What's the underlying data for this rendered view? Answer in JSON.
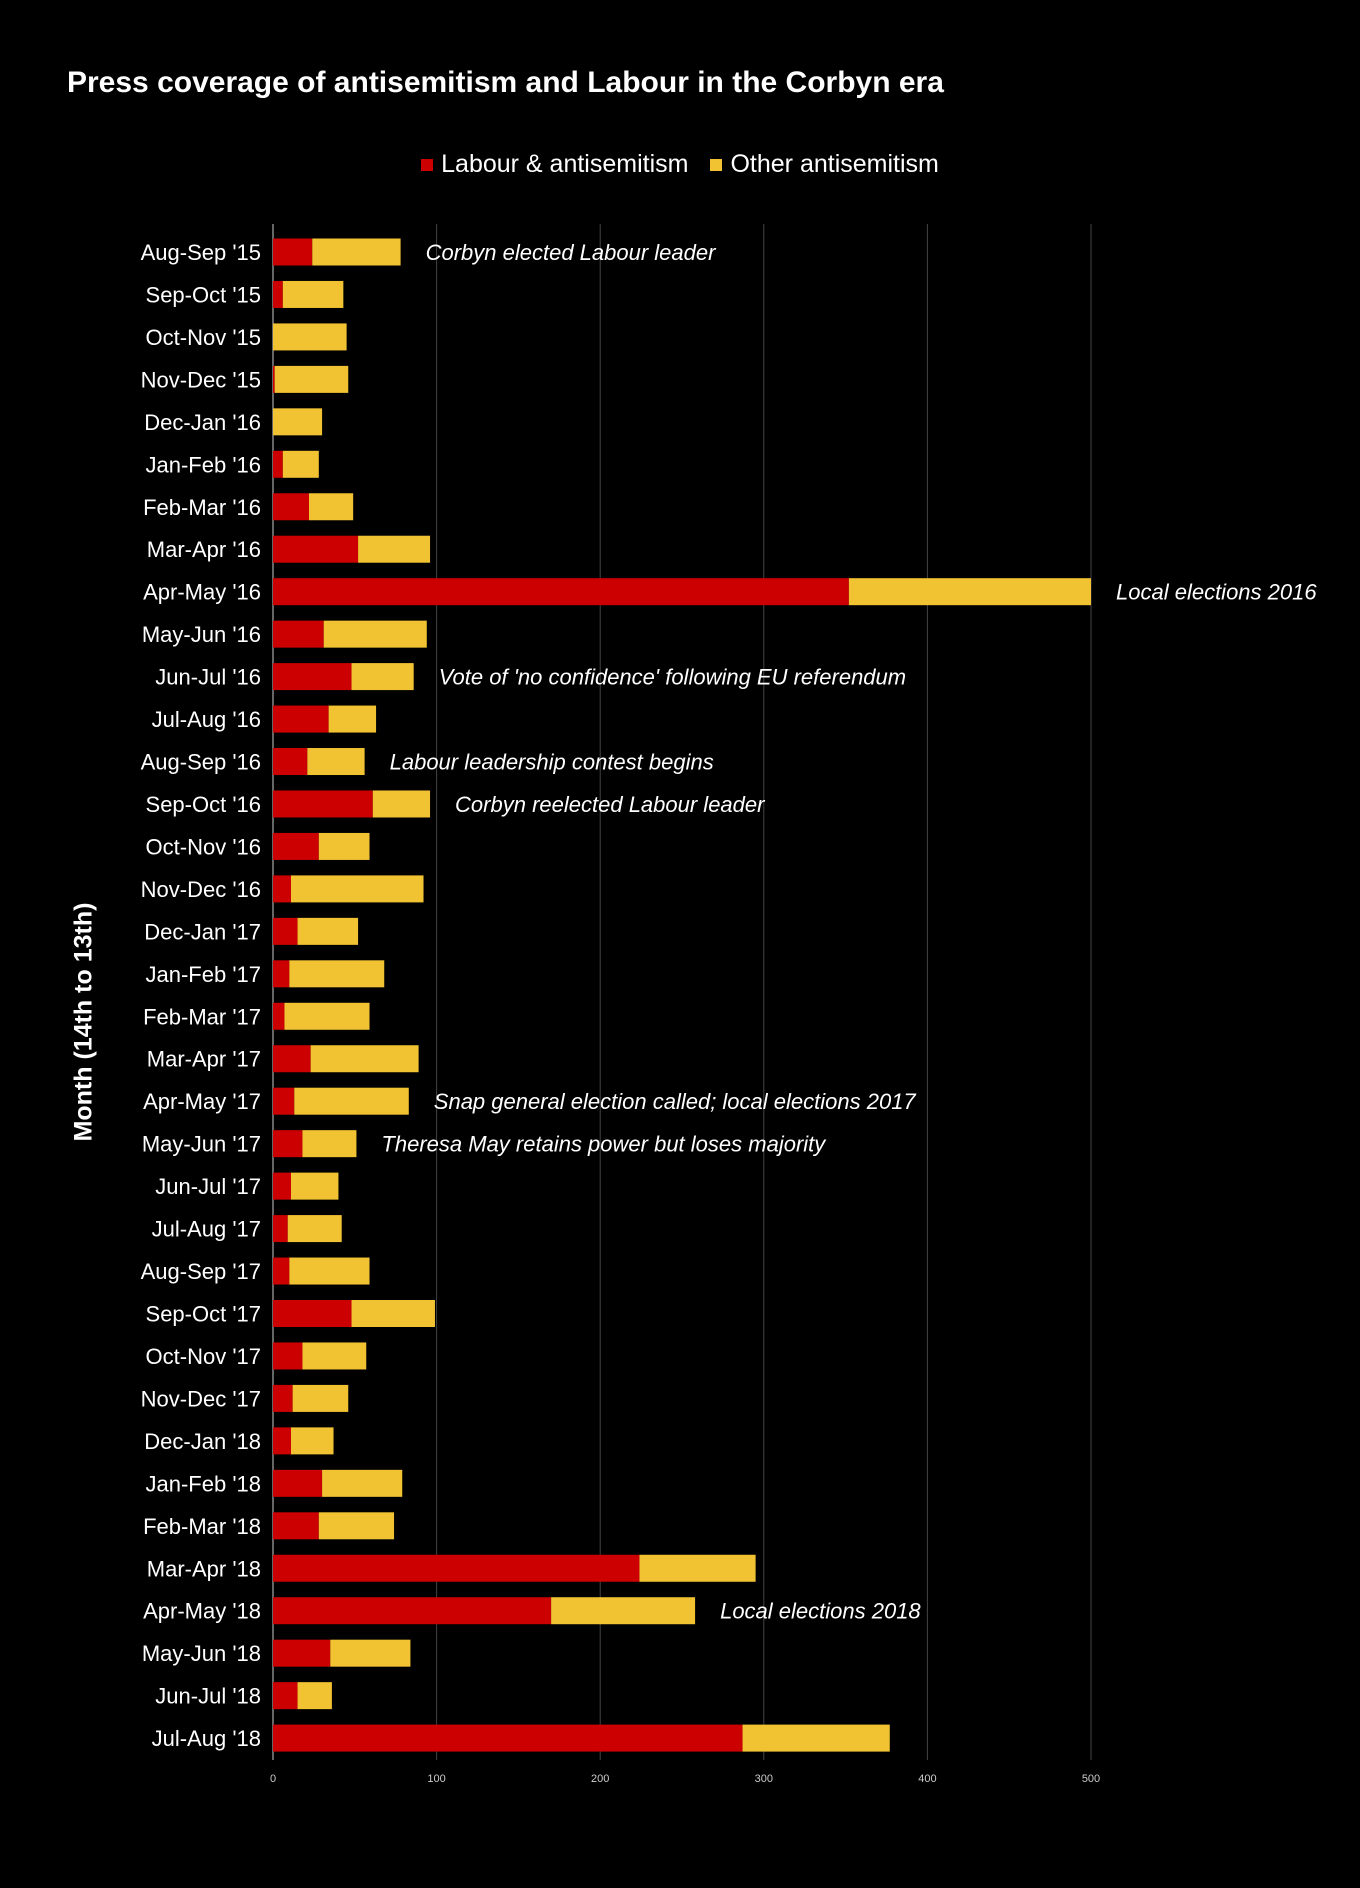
{
  "colors": {
    "labour": "#cc0000",
    "other": "#f1c232",
    "background": "#000000",
    "text": "#ffffff",
    "grid": "#444444",
    "tick": "#cccccc"
  },
  "chart_data": {
    "type": "bar",
    "orientation": "horizontal",
    "stacked": true,
    "title": "Press coverage of antisemitism and Labour in the Corbyn era",
    "ylabel": "Month (14th to 13th)",
    "xlabel": "",
    "xlim": [
      0,
      500
    ],
    "xticks": [
      0,
      100,
      200,
      300,
      400,
      500
    ],
    "grid": true,
    "legend_position": "top-center",
    "categories": [
      "Aug-Sep '15",
      "Sep-Oct '15",
      "Oct-Nov '15",
      "Nov-Dec '15",
      "Dec-Jan '16",
      "Jan-Feb '16",
      "Feb-Mar '16",
      "Mar-Apr '16",
      "Apr-May '16",
      "May-Jun '16",
      "Jun-Jul '16",
      "Jul-Aug '16",
      "Aug-Sep '16",
      "Sep-Oct '16",
      "Oct-Nov '16",
      "Nov-Dec '16",
      "Dec-Jan '17",
      "Jan-Feb '17",
      "Feb-Mar '17",
      "Mar-Apr '17",
      "Apr-May '17",
      "May-Jun '17",
      "Jun-Jul '17",
      "Jul-Aug '17",
      "Aug-Sep '17",
      "Sep-Oct '17",
      "Oct-Nov '17",
      "Nov-Dec '17",
      "Dec-Jan '18",
      "Jan-Feb '18",
      "Feb-Mar '18",
      "Mar-Apr '18",
      "Apr-May '18",
      "May-Jun '18",
      "Jun-Jul '18",
      "Jul-Aug '18"
    ],
    "series": [
      {
        "name": "Labour & antisemitism",
        "values": [
          24,
          6,
          0,
          1,
          0,
          6,
          22,
          52,
          352,
          31,
          48,
          34,
          21,
          61,
          28,
          11,
          15,
          10,
          7,
          23,
          13,
          18,
          11,
          9,
          10,
          48,
          18,
          12,
          11,
          30,
          28,
          224,
          170,
          35,
          15,
          287
        ]
      },
      {
        "name": "Other antisemitism",
        "values": [
          54,
          37,
          45,
          45,
          30,
          22,
          27,
          44,
          148,
          63,
          38,
          29,
          35,
          35,
          31,
          81,
          37,
          58,
          52,
          66,
          70,
          33,
          29,
          33,
          49,
          51,
          39,
          34,
          26,
          49,
          46,
          71,
          88,
          49,
          21,
          90
        ]
      }
    ],
    "annotations": [
      {
        "category": "Aug-Sep '15",
        "text": "Corbyn elected Labour leader"
      },
      {
        "category": "Apr-May '16",
        "text": "Local elections 2016"
      },
      {
        "category": "Jun-Jul '16",
        "text": "Vote of 'no confidence' following EU referendum"
      },
      {
        "category": "Aug-Sep '16",
        "text": "Labour leadership contest begins"
      },
      {
        "category": "Sep-Oct '16",
        "text": "Corbyn reelected Labour leader"
      },
      {
        "category": "Apr-May '17",
        "text": "Snap general election called; local elections 2017"
      },
      {
        "category": "May-Jun '17",
        "text": "Theresa May retains power but loses majority"
      },
      {
        "category": "Apr-May '18",
        "text": "Local elections 2018"
      }
    ]
  }
}
